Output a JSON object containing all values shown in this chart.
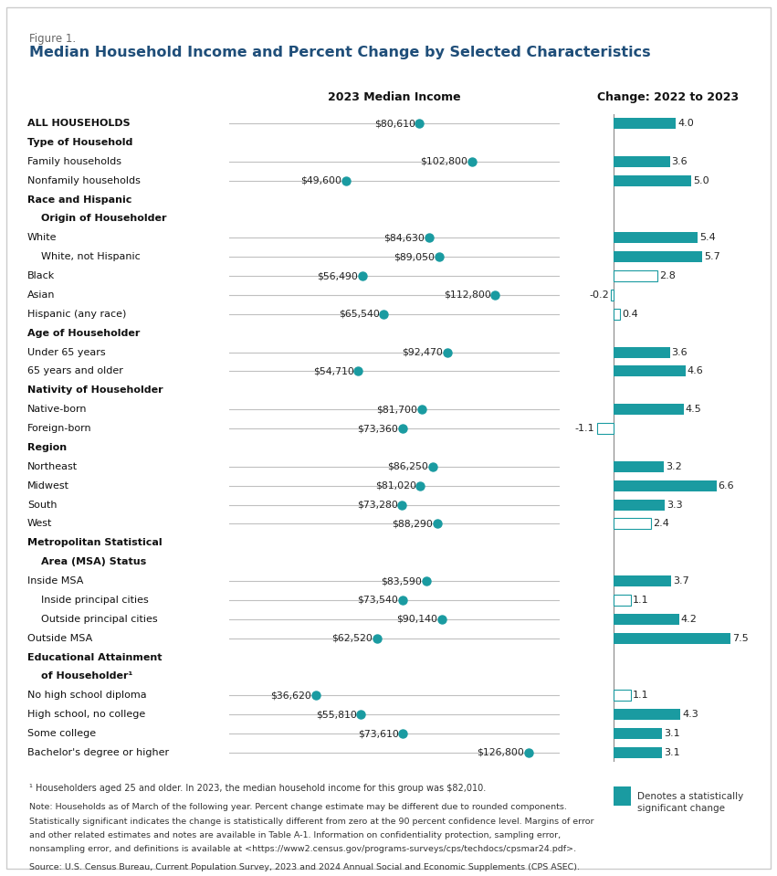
{
  "figure_label": "Figure 1.",
  "title": "Median Household Income and Percent Change by Selected Characteristics",
  "col1_header": "2023 Median Income",
  "col2_header": "Change: 2022 to 2023",
  "teal_color": "#1a9ba1",
  "blue_title_color": "#1F4E79",
  "line_color": "#c0c0c0",
  "rows": [
    {
      "label": "ALL HOUSEHOLDS",
      "bold": true,
      "indent": 0,
      "income": 80610,
      "income_str": "$80,610",
      "pct": 4.0,
      "significant": true
    },
    {
      "label": "Type of Household",
      "bold": true,
      "indent": 0,
      "income": null,
      "income_str": null,
      "pct": null,
      "significant": null
    },
    {
      "label": "Family households",
      "bold": false,
      "indent": 0,
      "income": 102800,
      "income_str": "$102,800",
      "pct": 3.6,
      "significant": true
    },
    {
      "label": "Nonfamily households",
      "bold": false,
      "indent": 0,
      "income": 49600,
      "income_str": "$49,600",
      "pct": 5.0,
      "significant": true
    },
    {
      "label": "Race and Hispanic",
      "bold": true,
      "indent": 0,
      "income": null,
      "income_str": null,
      "pct": null,
      "significant": null
    },
    {
      "label": "Origin of Householder",
      "bold": true,
      "indent": 1,
      "income": null,
      "income_str": null,
      "pct": null,
      "significant": null
    },
    {
      "label": "White",
      "bold": false,
      "indent": 0,
      "income": 84630,
      "income_str": "$84,630",
      "pct": 5.4,
      "significant": true
    },
    {
      "label": "White, not Hispanic",
      "bold": false,
      "indent": 1,
      "income": 89050,
      "income_str": "$89,050",
      "pct": 5.7,
      "significant": true
    },
    {
      "label": "Black",
      "bold": false,
      "indent": 0,
      "income": 56490,
      "income_str": "$56,490",
      "pct": 2.8,
      "significant": false
    },
    {
      "label": "Asian",
      "bold": false,
      "indent": 0,
      "income": 112800,
      "income_str": "$112,800",
      "pct": -0.2,
      "significant": false
    },
    {
      "label": "Hispanic (any race)",
      "bold": false,
      "indent": 0,
      "income": 65540,
      "income_str": "$65,540",
      "pct": 0.4,
      "significant": false
    },
    {
      "label": "Age of Householder",
      "bold": true,
      "indent": 0,
      "income": null,
      "income_str": null,
      "pct": null,
      "significant": null
    },
    {
      "label": "Under 65 years",
      "bold": false,
      "indent": 0,
      "income": 92470,
      "income_str": "$92,470",
      "pct": 3.6,
      "significant": true
    },
    {
      "label": "65 years and older",
      "bold": false,
      "indent": 0,
      "income": 54710,
      "income_str": "$54,710",
      "pct": 4.6,
      "significant": true
    },
    {
      "label": "Nativity of Householder",
      "bold": true,
      "indent": 0,
      "income": null,
      "income_str": null,
      "pct": null,
      "significant": null
    },
    {
      "label": "Native-born",
      "bold": false,
      "indent": 0,
      "income": 81700,
      "income_str": "$81,700",
      "pct": 4.5,
      "significant": true
    },
    {
      "label": "Foreign-born",
      "bold": false,
      "indent": 0,
      "income": 73360,
      "income_str": "$73,360",
      "pct": -1.1,
      "significant": false
    },
    {
      "label": "Region",
      "bold": true,
      "indent": 0,
      "income": null,
      "income_str": null,
      "pct": null,
      "significant": null
    },
    {
      "label": "Northeast",
      "bold": false,
      "indent": 0,
      "income": 86250,
      "income_str": "$86,250",
      "pct": 3.2,
      "significant": true
    },
    {
      "label": "Midwest",
      "bold": false,
      "indent": 0,
      "income": 81020,
      "income_str": "$81,020",
      "pct": 6.6,
      "significant": true
    },
    {
      "label": "South",
      "bold": false,
      "indent": 0,
      "income": 73280,
      "income_str": "$73,280",
      "pct": 3.3,
      "significant": true
    },
    {
      "label": "West",
      "bold": false,
      "indent": 0,
      "income": 88290,
      "income_str": "$88,290",
      "pct": 2.4,
      "significant": false
    },
    {
      "label": "Metropolitan Statistical",
      "bold": true,
      "indent": 0,
      "income": null,
      "income_str": null,
      "pct": null,
      "significant": null
    },
    {
      "label": "Area (MSA) Status",
      "bold": true,
      "indent": 1,
      "income": null,
      "income_str": null,
      "pct": null,
      "significant": null
    },
    {
      "label": "Inside MSA",
      "bold": false,
      "indent": 0,
      "income": 83590,
      "income_str": "$83,590",
      "pct": 3.7,
      "significant": true
    },
    {
      "label": "Inside principal cities",
      "bold": false,
      "indent": 1,
      "income": 73540,
      "income_str": "$73,540",
      "pct": 1.1,
      "significant": false
    },
    {
      "label": "Outside principal cities",
      "bold": false,
      "indent": 1,
      "income": 90140,
      "income_str": "$90,140",
      "pct": 4.2,
      "significant": true
    },
    {
      "label": "Outside MSA",
      "bold": false,
      "indent": 0,
      "income": 62520,
      "income_str": "$62,520",
      "pct": 7.5,
      "significant": true
    },
    {
      "label": "Educational Attainment",
      "bold": true,
      "indent": 0,
      "income": null,
      "income_str": null,
      "pct": null,
      "significant": null
    },
    {
      "label": "of Householder¹",
      "bold": true,
      "indent": 1,
      "income": null,
      "income_str": null,
      "pct": null,
      "significant": null
    },
    {
      "label": "No high school diploma",
      "bold": false,
      "indent": 0,
      "income": 36620,
      "income_str": "$36,620",
      "pct": 1.1,
      "significant": false
    },
    {
      "label": "High school, no college",
      "bold": false,
      "indent": 0,
      "income": 55810,
      "income_str": "$55,810",
      "pct": 4.3,
      "significant": true
    },
    {
      "label": "Some college",
      "bold": false,
      "indent": 0,
      "income": 73610,
      "income_str": "$73,610",
      "pct": 3.1,
      "significant": true
    },
    {
      "label": "Bachelor's degree or higher",
      "bold": false,
      "indent": 0,
      "income": 126800,
      "income_str": "$126,800",
      "pct": 3.1,
      "significant": true
    }
  ],
  "income_axis_max": 140000,
  "footnote1": "¹ Householders aged 25 and older. In 2023, the median household income for this group was $82,010.",
  "note_line1": "Note: Households as of March of the following year. Percent change estimate may be different due to rounded components.",
  "note_line2": "Statistically significant indicates the change is statistically different from zero at the 90 percent confidence level. Margins of error",
  "note_line3": "and other related estimates and notes are available in Table A-1. Information on confidentiality protection, sampling error,",
  "note_line4": "nonsampling error, and definitions is available at <https://www2.census.gov/programs-surveys/cps/techdocs/cpsmar24.pdf>.",
  "source": "Source: U.S. Census Bureau, Current Population Survey, 2023 and 2024 Annual Social and Economic Supplements (CPS ASEC).",
  "legend_text_line1": "Denotes a statistically",
  "legend_text_line2": "significant change"
}
